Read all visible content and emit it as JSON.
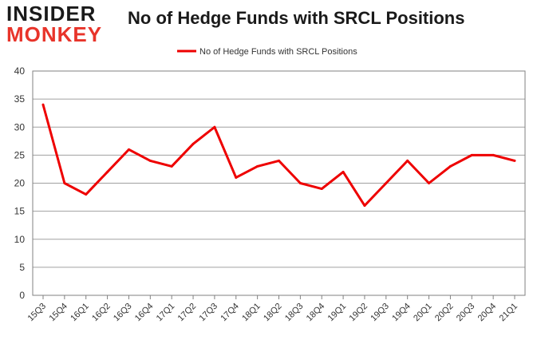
{
  "logo": {
    "line1": "INSIDER",
    "line2": "MONKEY",
    "line1_color": "#1a1a1a",
    "line2_color": "#e8342a"
  },
  "chart_data": {
    "type": "line",
    "title": "No of Hedge Funds with SRCL Positions",
    "xlabel": "",
    "ylabel": "",
    "ylim": [
      0,
      40
    ],
    "yticks": [
      0,
      5,
      10,
      15,
      20,
      25,
      30,
      35,
      40
    ],
    "grid": true,
    "legend_position": "top-center",
    "categories": [
      "15Q3",
      "15Q4",
      "16Q1",
      "16Q2",
      "16Q3",
      "16Q4",
      "17Q1",
      "17Q2",
      "17Q3",
      "17Q4",
      "18Q1",
      "18Q2",
      "18Q3",
      "18Q4",
      "19Q1",
      "19Q2",
      "19Q3",
      "19Q4",
      "20Q1",
      "20Q2",
      "20Q3",
      "20Q4",
      "21Q1"
    ],
    "series": [
      {
        "name": "No of Hedge Funds with SRCL Positions",
        "color": "#ee0000",
        "values": [
          34,
          20,
          18,
          22,
          26,
          24,
          23,
          27,
          30,
          21,
          23,
          24,
          20,
          19,
          22,
          16,
          20,
          24,
          20,
          23,
          25,
          25,
          24
        ]
      }
    ]
  }
}
